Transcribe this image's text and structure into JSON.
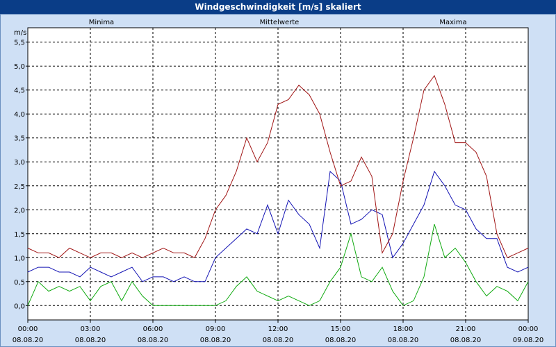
{
  "window": {
    "title": "Windgeschwindigkeit [m/s] skaliert"
  },
  "chart_data": {
    "type": "line",
    "title": "Windgeschwindigkeit [m/s] skaliert",
    "ylabel": "m/s",
    "xlabel": "",
    "ylim": [
      -0.3,
      5.8
    ],
    "xlim": [
      0,
      24
    ],
    "grid": true,
    "legend_placement": "top",
    "y_ticks": [
      {
        "value": 0.0,
        "label": "0,0"
      },
      {
        "value": 0.5,
        "label": "0,5"
      },
      {
        "value": 1.0,
        "label": "1,0"
      },
      {
        "value": 1.5,
        "label": "1,5"
      },
      {
        "value": 2.0,
        "label": "2,0"
      },
      {
        "value": 2.5,
        "label": "2,5"
      },
      {
        "value": 3.0,
        "label": "3,0"
      },
      {
        "value": 3.5,
        "label": "3,5"
      },
      {
        "value": 4.0,
        "label": "4,0"
      },
      {
        "value": 4.5,
        "label": "4,5"
      },
      {
        "value": 5.0,
        "label": "5,0"
      },
      {
        "value": 5.5,
        "label": "5,5"
      }
    ],
    "x_ticks": [
      {
        "value": 0,
        "time": "00:00",
        "date": "08.08.20"
      },
      {
        "value": 3,
        "time": "03:00",
        "date": "08.08.20"
      },
      {
        "value": 6,
        "time": "06:00",
        "date": "08.08.20"
      },
      {
        "value": 9,
        "time": "09:00",
        "date": "08.08.20"
      },
      {
        "value": 12,
        "time": "12:00",
        "date": "08.08.20"
      },
      {
        "value": 15,
        "time": "15:00",
        "date": "08.08.20"
      },
      {
        "value": 18,
        "time": "18:00",
        "date": "08.08.20"
      },
      {
        "value": 21,
        "time": "21:00",
        "date": "08.08.20"
      },
      {
        "value": 24,
        "time": "00:00",
        "date": "09.08.20"
      }
    ],
    "series": [
      {
        "name": "Minima",
        "color": "#11aa11",
        "x": [
          0.0,
          0.5,
          1.0,
          1.5,
          2.0,
          2.5,
          3.0,
          3.5,
          4.0,
          4.5,
          5.0,
          5.5,
          6.0,
          6.5,
          7.0,
          7.5,
          8.0,
          8.5,
          9.0,
          9.5,
          10.0,
          10.5,
          11.0,
          11.5,
          12.0,
          12.5,
          13.0,
          13.5,
          14.0,
          14.5,
          15.0,
          15.5,
          16.0,
          16.5,
          17.0,
          17.5,
          18.0,
          18.5,
          19.0,
          19.5,
          20.0,
          20.5,
          21.0,
          21.5,
          22.0,
          22.5,
          23.0,
          23.5,
          24.0
        ],
        "values": [
          0.0,
          0.5,
          0.3,
          0.4,
          0.3,
          0.4,
          0.1,
          0.4,
          0.5,
          0.1,
          0.5,
          0.2,
          0.0,
          0.0,
          0.0,
          0.0,
          0.0,
          0.0,
          0.0,
          0.1,
          0.4,
          0.6,
          0.3,
          0.2,
          0.1,
          0.2,
          0.1,
          0.0,
          0.1,
          0.5,
          0.8,
          1.5,
          0.6,
          0.5,
          0.8,
          0.3,
          0.0,
          0.1,
          0.6,
          1.7,
          1.0,
          1.2,
          0.9,
          0.5,
          0.2,
          0.4,
          0.3,
          0.1,
          0.5
        ]
      },
      {
        "name": "Mittelwerte",
        "color": "#1414b4",
        "x": [
          0.0,
          0.5,
          1.0,
          1.5,
          2.0,
          2.5,
          3.0,
          3.5,
          4.0,
          4.5,
          5.0,
          5.5,
          6.0,
          6.5,
          7.0,
          7.5,
          8.0,
          8.5,
          9.0,
          9.5,
          10.0,
          10.5,
          11.0,
          11.5,
          12.0,
          12.5,
          13.0,
          13.5,
          14.0,
          14.5,
          15.0,
          15.5,
          16.0,
          16.5,
          17.0,
          17.5,
          18.0,
          18.5,
          19.0,
          19.5,
          20.0,
          20.5,
          21.0,
          21.5,
          22.0,
          22.5,
          23.0,
          23.5,
          24.0
        ],
        "values": [
          0.7,
          0.8,
          0.8,
          0.7,
          0.7,
          0.6,
          0.8,
          0.7,
          0.6,
          0.7,
          0.8,
          0.5,
          0.6,
          0.6,
          0.5,
          0.6,
          0.5,
          0.5,
          1.0,
          1.2,
          1.4,
          1.6,
          1.5,
          2.1,
          1.5,
          2.2,
          1.9,
          1.7,
          1.2,
          2.8,
          2.6,
          1.7,
          1.8,
          2.0,
          1.9,
          1.0,
          1.3,
          1.7,
          2.1,
          2.8,
          2.5,
          2.1,
          2.0,
          1.6,
          1.4,
          1.4,
          0.8,
          0.7,
          0.8
        ]
      },
      {
        "name": "Maxima",
        "color": "#a01414",
        "x": [
          0.0,
          0.5,
          1.0,
          1.5,
          2.0,
          2.5,
          3.0,
          3.5,
          4.0,
          4.5,
          5.0,
          5.5,
          6.0,
          6.5,
          7.0,
          7.5,
          8.0,
          8.5,
          9.0,
          9.5,
          10.0,
          10.5,
          11.0,
          11.5,
          12.0,
          12.5,
          13.0,
          13.5,
          14.0,
          14.5,
          15.0,
          15.5,
          16.0,
          16.5,
          17.0,
          17.5,
          18.0,
          18.5,
          19.0,
          19.5,
          20.0,
          20.5,
          21.0,
          21.5,
          22.0,
          22.5,
          23.0,
          23.5,
          24.0
        ],
        "values": [
          1.2,
          1.1,
          1.1,
          1.0,
          1.2,
          1.1,
          1.0,
          1.1,
          1.1,
          1.0,
          1.1,
          1.0,
          1.1,
          1.2,
          1.1,
          1.1,
          1.0,
          1.4,
          2.0,
          2.3,
          2.8,
          3.5,
          3.0,
          3.4,
          4.2,
          4.3,
          4.6,
          4.4,
          4.0,
          3.2,
          2.5,
          2.6,
          3.1,
          2.7,
          1.1,
          1.5,
          2.6,
          3.5,
          4.5,
          4.8,
          4.2,
          3.4,
          3.4,
          3.2,
          2.7,
          1.5,
          1.0,
          1.1,
          1.2
        ]
      }
    ]
  }
}
